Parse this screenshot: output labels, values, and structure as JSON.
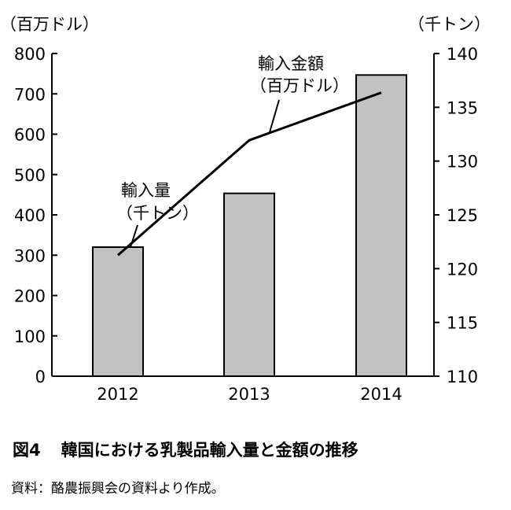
{
  "chart_data": {
    "type": "bar",
    "categories": [
      "2012",
      "2013",
      "2014"
    ],
    "series": [
      {
        "name": "輸入量",
        "name_unit": "（千トン）",
        "kind": "bar",
        "axis": "right",
        "values": [
          122,
          127,
          138
        ]
      },
      {
        "name": "輸入金額",
        "name_unit": "（百万ドル）",
        "kind": "line",
        "axis": "left",
        "values": [
          300,
          585,
          703
        ]
      }
    ],
    "left_axis": {
      "unit_label": "（百万ドル）",
      "ylim": [
        0,
        800
      ],
      "ticks": [
        "0",
        "100",
        "200",
        "300",
        "400",
        "500",
        "600",
        "700",
        "800"
      ]
    },
    "right_axis": {
      "unit_label": "（千トン）",
      "ylim": [
        110,
        140
      ],
      "ticks": [
        "110",
        "115",
        "120",
        "125",
        "130",
        "135",
        "140"
      ]
    },
    "bar_color": "#c2c2c2",
    "line_color": "#000000",
    "grid": false,
    "legend": "none (inline annotations)"
  },
  "caption": {
    "figure_number": "図4",
    "title": "韓国における乳製品輸入量と金額の推移",
    "source": "資料：酪農振興会の資料より作成。"
  }
}
